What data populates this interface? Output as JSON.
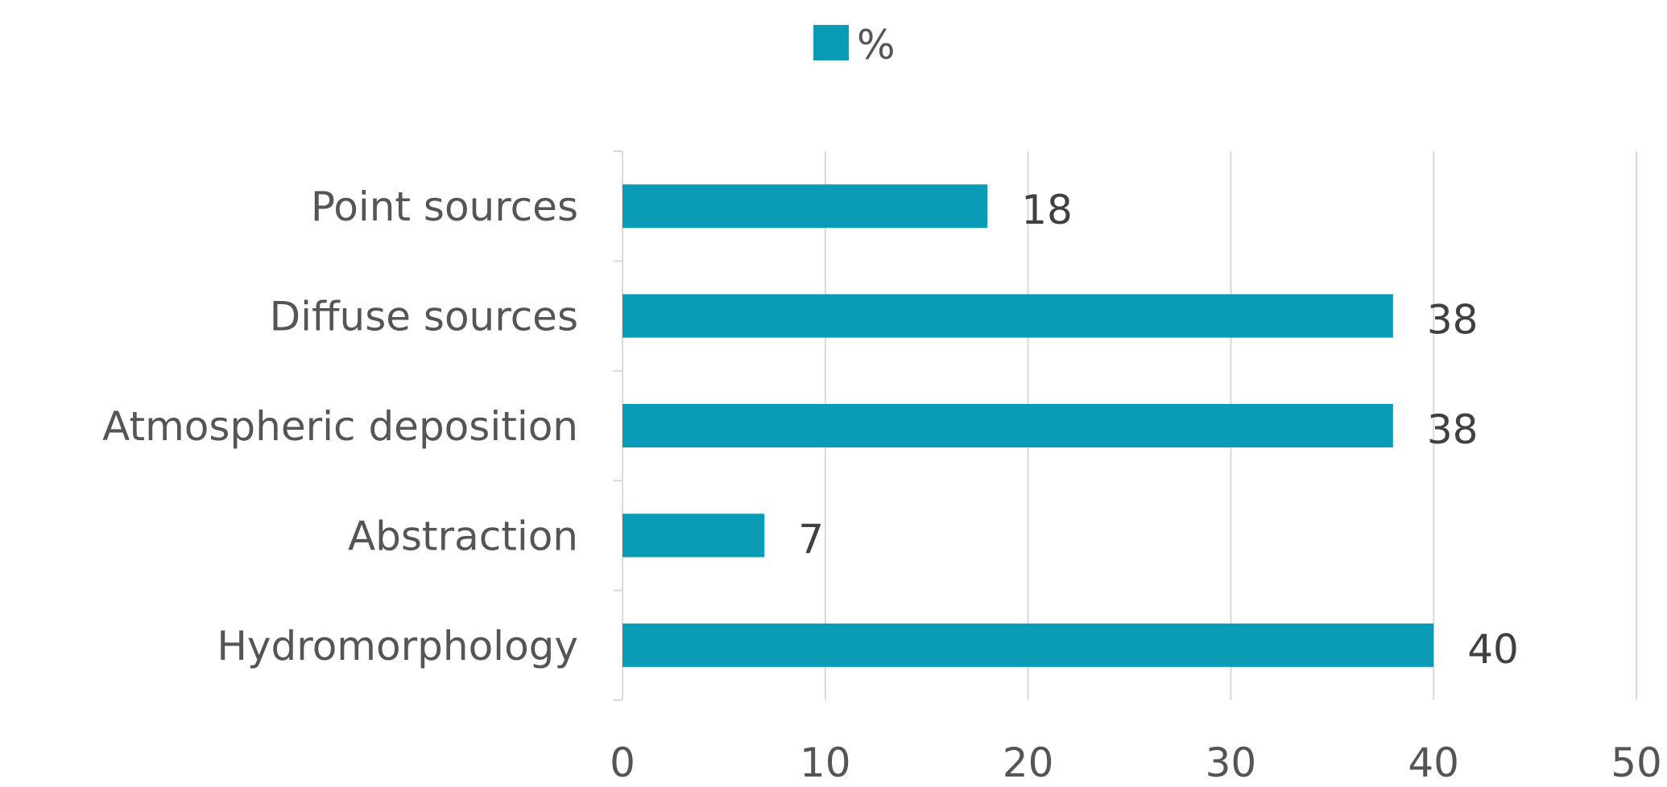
{
  "chart_data": {
    "type": "bar",
    "orientation": "horizontal",
    "categories": [
      "Point sources",
      "Diffuse sources",
      "Atmospheric deposition",
      "Abstraction",
      "Hydromorphology"
    ],
    "series": [
      {
        "name": "%",
        "values": [
          18,
          38,
          38,
          7,
          40
        ]
      }
    ],
    "data_labels": [
      "18",
      "38",
      "38",
      "7",
      "40"
    ],
    "x_ticks": [
      "0",
      "10",
      "20",
      "30",
      "40",
      "50"
    ],
    "xlim": [
      0,
      50
    ],
    "grid": "vertical",
    "legend_position": "top",
    "bar_color": "#0a9cb7",
    "text_color": "#555555",
    "grid_color": "#d9d9d9"
  }
}
